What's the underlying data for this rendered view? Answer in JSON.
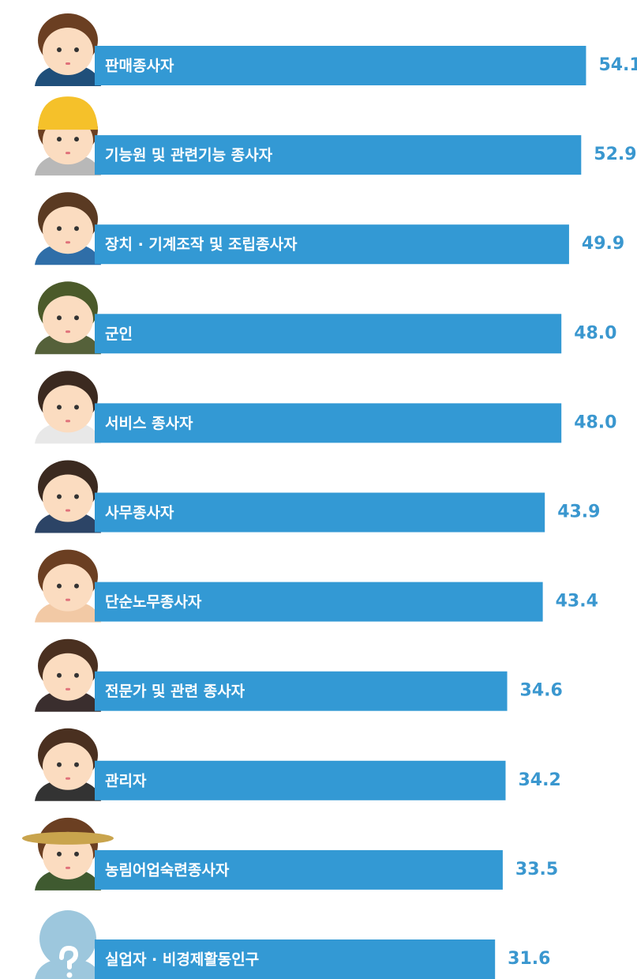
{
  "chart_data": {
    "type": "bar",
    "orientation": "horizontal",
    "categories": [
      "판매종사자",
      "기능원 및 관련기능 종사자",
      "장치 · 기계조작 및 조립종사자",
      "군인",
      "서비스 종사자",
      "사무종사자",
      "단순노무종사자",
      "전문가 및 관련 종사자",
      "관리자",
      "농림어업숙련종사자",
      "실업자 · 비경제활동인구"
    ],
    "values": [
      54.1,
      52.9,
      49.9,
      48.0,
      48.0,
      43.9,
      43.4,
      34.6,
      34.2,
      33.5,
      31.6
    ],
    "value_labels": [
      "54.1",
      "52.9",
      "49.9",
      "48.0",
      "48.0",
      "43.9",
      "43.4",
      "34.6",
      "34.2",
      "33.5",
      "31.6"
    ],
    "color": "#3399d4",
    "xlim": [
      -67.4,
      66.7
    ]
  }
}
